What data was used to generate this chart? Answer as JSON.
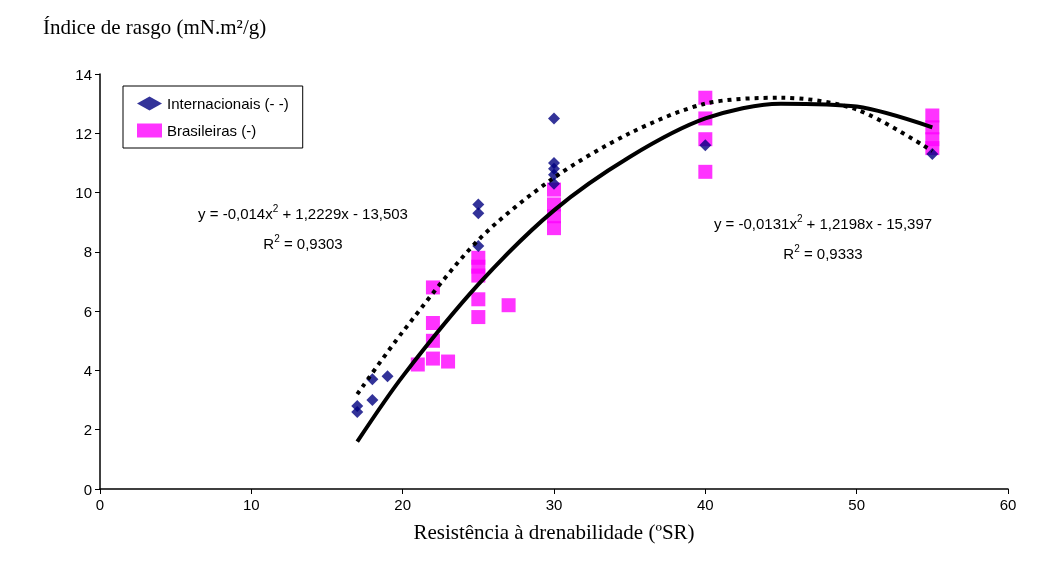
{
  "chart_data": {
    "type": "scatter",
    "xlabel": "Resistência à drenabilidade (ºSR)",
    "ylabel": "Índice de rasgo (mN.m²/g)",
    "xlim": [
      0,
      60
    ],
    "xticks": [
      0,
      10,
      20,
      30,
      40,
      50,
      60
    ],
    "ylim": [
      0,
      14
    ],
    "yticks": [
      0,
      2,
      4,
      6,
      8,
      10,
      12,
      14
    ],
    "grid": false,
    "legend": "top left",
    "series": [
      {
        "name": "Internacionais (- -)",
        "color": "#000080",
        "marker": "diamond",
        "x": [
          17,
          17,
          18,
          18,
          19,
          25,
          25,
          25,
          30,
          30,
          30,
          30,
          30,
          40,
          55
        ],
        "values": [
          2.6,
          2.8,
          3.0,
          3.7,
          3.8,
          9.6,
          9.3,
          8.2,
          12.5,
          11.0,
          10.8,
          10.6,
          10.3,
          11.6,
          11.3
        ]
      },
      {
        "name": "Brasileiras (-)",
        "color": "#ff00ff",
        "marker": "square",
        "x": [
          21,
          22,
          22,
          22,
          22,
          23,
          25,
          25,
          25,
          25,
          25,
          27,
          30,
          30,
          30,
          30,
          40,
          40,
          40,
          40,
          55,
          55,
          55,
          55
        ],
        "values": [
          4.2,
          6.8,
          5.6,
          5.0,
          4.4,
          4.3,
          7.8,
          7.5,
          7.2,
          6.4,
          5.8,
          6.2,
          10.1,
          9.6,
          9.2,
          8.8,
          13.2,
          12.5,
          11.8,
          10.7,
          12.6,
          12.2,
          11.8,
          11.5
        ]
      },
      {
        "type": "line",
        "color": "#000000",
        "line_style": "dotted",
        "marker": "none",
        "x": [
          17,
          20,
          25,
          30,
          35,
          40,
          45,
          50,
          55
        ],
        "values": [
          3.2,
          5.3,
          8.4,
          10.5,
          12.0,
          13.0,
          13.2,
          12.8,
          11.4
        ]
      },
      {
        "type": "line",
        "color": "#000000",
        "line_style": "solid",
        "marker": "none",
        "x": [
          17,
          20,
          25,
          30,
          35,
          40,
          45,
          50,
          55
        ],
        "values": [
          1.6,
          3.8,
          6.9,
          9.4,
          11.2,
          12.5,
          13.0,
          12.9,
          12.2
        ]
      }
    ],
    "annotations": [
      "y = -0,014x$^{2}$ + 1,2229x - 13,503",
      "R$^{2}$ = 0,9303",
      "y = -0,0131x$^{2}$ + 1,2198x - 15,397",
      "R$^{2}$ = 0,9333"
    ]
  }
}
